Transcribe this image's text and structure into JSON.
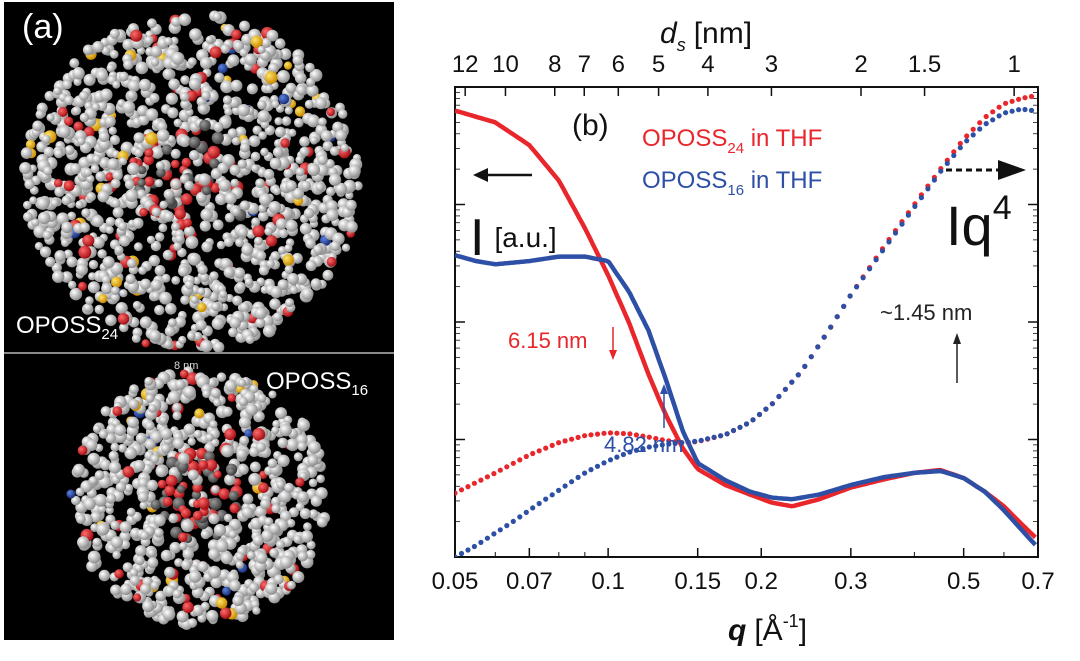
{
  "panel_a": {
    "label": "(a)",
    "top_molecule": {
      "name": "OPOSS",
      "subscript": "24"
    },
    "bottom_molecule": {
      "name": "OPOSS",
      "subscript": "16"
    },
    "scale_bar": "8 nm"
  },
  "chart_data": {
    "type": "line",
    "panel_label": "(b)",
    "x_axis": {
      "symbol": "q",
      "unit": "[Å",
      "unit_exponent": "-1",
      "unit_close": "]",
      "scale": "log",
      "range": [
        0.05,
        0.7
      ],
      "ticks": [
        "0.05",
        "0.07",
        "0.1",
        "0.15",
        "0.2",
        "0.3",
        "0.5",
        "0.7"
      ]
    },
    "top_axis": {
      "symbol": "d",
      "symbol_subscript": "s",
      "unit": "[nm]",
      "ticks": [
        "12",
        "10",
        "8",
        "7",
        "6",
        "5",
        "4",
        "3",
        "2",
        "1.5",
        "1"
      ]
    },
    "y_axis": {
      "left_label": "I",
      "left_unit": "[a.u.]",
      "right_label": "Iq",
      "right_exponent": "4",
      "scale": "log",
      "range": [
        0.01,
        100
      ]
    },
    "legend": {
      "placement": "top-center",
      "entries": [
        {
          "name": "OPOSS",
          "subscript": "24",
          "suffix": " in THF",
          "color": "#e8262b"
        },
        {
          "name": "OPOSS",
          "subscript": "16",
          "suffix": " in THF",
          "color": "#2d4fa6"
        }
      ]
    },
    "series": [
      {
        "name": "OPOSS24 in THF",
        "style": "solid",
        "color": "#e8262b",
        "x": [
          0.05,
          0.06,
          0.07,
          0.08,
          0.09,
          0.1,
          0.11,
          0.12,
          0.13,
          0.14,
          0.15,
          0.17,
          0.19,
          0.21,
          0.23,
          0.26,
          0.3,
          0.35,
          0.4,
          0.45,
          0.5,
          0.55,
          0.6,
          0.65,
          0.7
        ],
        "y": [
          63,
          50,
          32,
          16,
          6.3,
          2.5,
          0.98,
          0.36,
          0.16,
          0.085,
          0.056,
          0.041,
          0.034,
          0.029,
          0.027,
          0.031,
          0.039,
          0.046,
          0.052,
          0.055,
          0.047,
          0.036,
          0.027,
          0.019,
          0.014
        ]
      },
      {
        "name": "OPOSS16 in THF",
        "style": "solid",
        "color": "#2d4fa6",
        "x": [
          0.05,
          0.055,
          0.06,
          0.07,
          0.08,
          0.09,
          0.1,
          0.11,
          0.12,
          0.13,
          0.14,
          0.15,
          0.17,
          0.19,
          0.21,
          0.23,
          0.26,
          0.3,
          0.35,
          0.4,
          0.45,
          0.5,
          0.55,
          0.6,
          0.65,
          0.7
        ],
        "y": [
          3.7,
          3.3,
          3.1,
          3.3,
          3.6,
          3.6,
          3.3,
          1.8,
          0.85,
          0.32,
          0.12,
          0.063,
          0.045,
          0.036,
          0.032,
          0.031,
          0.034,
          0.041,
          0.048,
          0.052,
          0.054,
          0.047,
          0.036,
          0.025,
          0.017,
          0.012
        ]
      },
      {
        "name": "OPOSS24 in THF · Iq4",
        "style": "dotted",
        "color": "#e8262b",
        "x": [
          0.05,
          0.06,
          0.07,
          0.08,
          0.09,
          0.1,
          0.11,
          0.12,
          0.13,
          0.14,
          0.15,
          0.17,
          0.19,
          0.21,
          0.24,
          0.27,
          0.3,
          0.35,
          0.4,
          0.45,
          0.5,
          0.55,
          0.6,
          0.65,
          0.7
        ],
        "y": [
          0.035,
          0.052,
          0.074,
          0.094,
          0.108,
          0.114,
          0.112,
          0.105,
          0.098,
          0.094,
          0.096,
          0.11,
          0.14,
          0.2,
          0.38,
          0.82,
          1.7,
          4.5,
          10,
          20,
          36,
          55,
          72,
          80,
          85
        ]
      },
      {
        "name": "OPOSS16 in THF · Iq4",
        "style": "dotted",
        "color": "#2d4fa6",
        "x": [
          0.05,
          0.055,
          0.06,
          0.065,
          0.07,
          0.08,
          0.09,
          0.1,
          0.11,
          0.12,
          0.13,
          0.14,
          0.15,
          0.17,
          0.19,
          0.21,
          0.24,
          0.27,
          0.3,
          0.35,
          0.4,
          0.45,
          0.5,
          0.55,
          0.6,
          0.65,
          0.7
        ],
        "y": [
          0.01,
          0.0125,
          0.016,
          0.02,
          0.025,
          0.037,
          0.052,
          0.066,
          0.078,
          0.086,
          0.091,
          0.094,
          0.097,
          0.11,
          0.14,
          0.2,
          0.38,
          0.82,
          1.7,
          4.3,
          9.5,
          19,
          33,
          48,
          60,
          65,
          62
        ]
      }
    ],
    "annotations": [
      {
        "text": "6.15 nm",
        "color": "#e8262b",
        "x": 0.102,
        "y": 0.11
      },
      {
        "text": "4.82 nm",
        "color": "#2d4fa6",
        "x": 0.13,
        "y": 0.094
      },
      {
        "text": "~1.45 nm",
        "color": "#222222",
        "x": 0.43,
        "y": 0.055
      }
    ],
    "arrows": [
      {
        "direction": "left",
        "refers_to": "I [a.u.]"
      },
      {
        "direction": "right",
        "style": "dashed",
        "refers_to": "Iq4"
      }
    ]
  }
}
